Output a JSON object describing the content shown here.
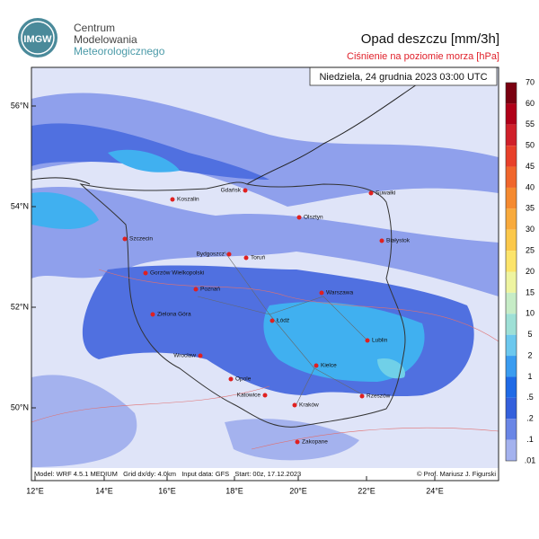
{
  "header": {
    "logo": "IMGW",
    "org_lines": [
      "Centrum",
      "Modelowania",
      "Meteorologicznego"
    ],
    "title": "Opad deszczu [mm/3h]",
    "subtitle": "Ciśnienie na poziomie morza [hPa]",
    "date": "Niedziela, 24 grudnia 2023 03:00 UTC"
  },
  "map": {
    "lat_labels": [
      "56°N",
      "54°N",
      "52°N",
      "50°N"
    ],
    "lon_labels": [
      "12°E",
      "14°E",
      "16°E",
      "18°E",
      "20°E",
      "22°E",
      "24°E"
    ],
    "cities": [
      "Gdańsk",
      "Koszalin",
      "Suwałki",
      "Olsztyn",
      "Szczecin",
      "Bydgoszcz",
      "Toruń",
      "Białystok",
      "Gorzów Wielkopolski",
      "Poznań",
      "Warszawa",
      "Zielona Góra",
      "Łódź",
      "Lublin",
      "Wrocław",
      "Kielce",
      "Opole",
      "Katowice",
      "Kraków",
      "Rzeszów",
      "Zakopane"
    ]
  },
  "colorbar": {
    "labels": [
      "70",
      "60",
      "55",
      "50",
      "45",
      "40",
      "35",
      "30",
      "25",
      "20",
      "15",
      "10",
      "5",
      "2",
      "1",
      ".5",
      ".2",
      ".1",
      ".01"
    ],
    "colors": [
      "#7a0010",
      "#b00018",
      "#d0202a",
      "#e8402a",
      "#f0662c",
      "#f58a30",
      "#f8aa3c",
      "#fbc84a",
      "#fce46a",
      "#eef4a0",
      "#c6ecc6",
      "#9ee0d6",
      "#6cc8ee",
      "#3a9cf0",
      "#1f6ae6",
      "#3460dc",
      "#6a86e6",
      "#a4b2ee"
    ]
  },
  "footer": {
    "model": "Model: WRF 4.5.1 MEDIUM   Grid dx/dy: 4.0km   Input data: GFS   Start: 00z, 17.12.2023",
    "credit": "© Prof. Mariusz J. Figurski"
  }
}
